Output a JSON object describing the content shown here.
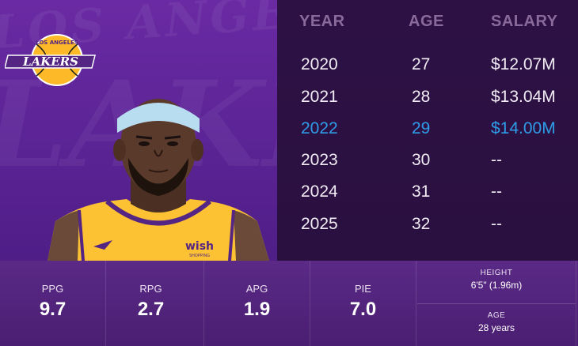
{
  "team": {
    "logo_text_top": "LOS ANGELES",
    "logo_text_main": "LAKERS",
    "watermark_text": "LOS ANGELES",
    "watermark_big": "LAKERS",
    "jersey_sponsor": "wish",
    "jersey_sponsor_sub": "SHOPPING"
  },
  "contract": {
    "headers": {
      "year": "YEAR",
      "age": "AGE",
      "salary": "SALARY"
    },
    "rows": [
      {
        "year": "2020",
        "age": "27",
        "salary": "$12.07M",
        "current": false
      },
      {
        "year": "2021",
        "age": "28",
        "salary": "$13.04M",
        "current": false
      },
      {
        "year": "2022",
        "age": "29",
        "salary": "$14.00M",
        "current": true
      },
      {
        "year": "2023",
        "age": "30",
        "salary": "--",
        "current": false
      },
      {
        "year": "2024",
        "age": "31",
        "salary": "--",
        "current": false
      },
      {
        "year": "2025",
        "age": "32",
        "salary": "--",
        "current": false
      }
    ],
    "highlight_color": "#2f9ce8"
  },
  "stats": [
    {
      "label": "PPG",
      "value": "9.7"
    },
    {
      "label": "RPG",
      "value": "2.7"
    },
    {
      "label": "APG",
      "value": "1.9"
    },
    {
      "label": "PIE",
      "value": "7.0"
    }
  ],
  "bio": {
    "height_label": "HEIGHT",
    "height_value": "6'5\" (1.96m)",
    "age_label": "AGE",
    "age_value": "28 years"
  },
  "colors": {
    "purple": "#5a2394",
    "gold": "#fdb927",
    "dark": "#2a1040"
  }
}
